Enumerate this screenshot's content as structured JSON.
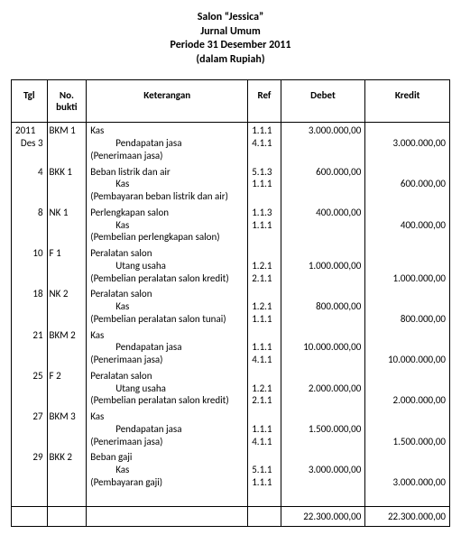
{
  "header": {
    "line1": "Salon “Jessica”",
    "line2": "Jurnal Umum",
    "line3": "Periode 31 Desember 2011",
    "line4": "(dalam Rupiah)"
  },
  "columns": {
    "tgl": "Tgl",
    "bukti": "No. bukti",
    "keterangan": "Keterangan",
    "ref": "Ref",
    "debet": "Debet",
    "kredit": "Kredit"
  },
  "year_label": "2011",
  "entries": [
    {
      "tgl": "Des  3",
      "bukti": "BKM 1",
      "lines": [
        {
          "ket": "Kas",
          "indent": 0,
          "ref": "1.1.1",
          "deb": "3.000.000,00",
          "kre": ""
        },
        {
          "ket": "Pendapatan jasa",
          "indent": 1,
          "ref": "4.1.1",
          "deb": "",
          "kre": "3.000.000,00"
        },
        {
          "ket": "(Penerimaan jasa)",
          "indent": 0,
          "ref": "",
          "deb": "",
          "kre": ""
        }
      ]
    },
    {
      "tgl": "4",
      "bukti": "BKK 1",
      "lines": [
        {
          "ket": "Beban listrik dan air",
          "indent": 0,
          "ref": "5.1.3",
          "deb": "600.000,00",
          "kre": ""
        },
        {
          "ket": "Kas",
          "indent": 1,
          "ref": "1.1.1",
          "deb": "",
          "kre": "600.000,00"
        },
        {
          "ket": "(Pembayaran beban listrik dan air)",
          "indent": 0,
          "ref": "",
          "deb": "",
          "kre": ""
        }
      ]
    },
    {
      "tgl": "8",
      "bukti": "NK 1",
      "lines": [
        {
          "ket": "Perlengkapan salon",
          "indent": 0,
          "ref": "1.1.3",
          "deb": "400.000,00",
          "kre": ""
        },
        {
          "ket": "Kas",
          "indent": 1,
          "ref": "1.1.1",
          "deb": "",
          "kre": "400.000,00"
        },
        {
          "ket": "(Pembelian perlengkapan salon)",
          "indent": 0,
          "ref": "",
          "deb": "",
          "kre": ""
        }
      ]
    },
    {
      "tgl": "10",
      "bukti": "F 1",
      "lines": [
        {
          "ket": "Peralatan salon",
          "indent": 0,
          "ref": "",
          "deb": "",
          "kre": ""
        },
        {
          "ket": "Utang usaha",
          "indent": 1,
          "ref": "1.2.1",
          "deb": "1.000.000,00",
          "kre": ""
        },
        {
          "ket": "(Pembelian peralatan salon kredit)",
          "indent": 0,
          "ref": "2.1.1",
          "deb": "",
          "kre": "1.000.000,00"
        }
      ]
    },
    {
      "tgl": "18",
      "bukti": "NK 2",
      "lines": [
        {
          "ket": "Peralatan salon",
          "indent": 0,
          "ref": "",
          "deb": "",
          "kre": ""
        },
        {
          "ket": "Kas",
          "indent": 1,
          "ref": "1.2.1",
          "deb": "800.000,00",
          "kre": ""
        },
        {
          "ket": "(Pembelian peralatan salon tunai)",
          "indent": 0,
          "ref": "1.1.1",
          "deb": "",
          "kre": "800.000,00"
        }
      ]
    },
    {
      "tgl": "21",
      "bukti": "BKM 2",
      "lines": [
        {
          "ket": "Kas",
          "indent": 0,
          "ref": "",
          "deb": "",
          "kre": ""
        },
        {
          "ket": "Pendapatan jasa",
          "indent": 1,
          "ref": "1.1.1",
          "deb": "10.000.000,00",
          "kre": ""
        },
        {
          "ket": "(Penerimaan jasa)",
          "indent": 0,
          "ref": "4.1.1",
          "deb": "",
          "kre": "10.000.000,00"
        }
      ]
    },
    {
      "tgl": "25",
      "bukti": "F 2",
      "lines": [
        {
          "ket": "Peralatan salon",
          "indent": 0,
          "ref": "",
          "deb": "",
          "kre": ""
        },
        {
          "ket": "Utang usaha",
          "indent": 1,
          "ref": "1.2.1",
          "deb": "2.000.000,00",
          "kre": ""
        },
        {
          "ket": "(Pembelian peralatan salon kredit)",
          "indent": 0,
          "ref": "2.1.1",
          "deb": "",
          "kre": "2.000.000,00"
        }
      ]
    },
    {
      "tgl": "27",
      "bukti": "BKM 3",
      "lines": [
        {
          "ket": "Kas",
          "indent": 0,
          "ref": "",
          "deb": "",
          "kre": ""
        },
        {
          "ket": "Pendapatan jasa",
          "indent": 1,
          "ref": "1.1.1",
          "deb": "1.500.000,00",
          "kre": ""
        },
        {
          "ket": "(Penerimaan jasa)",
          "indent": 0,
          "ref": "4.1.1",
          "deb": "",
          "kre": "1.500.000,00"
        }
      ]
    },
    {
      "tgl": "29",
      "bukti": "BKK 2",
      "lines": [
        {
          "ket": "Beban gaji",
          "indent": 0,
          "ref": "",
          "deb": "",
          "kre": ""
        },
        {
          "ket": "Kas",
          "indent": 1,
          "ref": "5.1.1",
          "deb": "3.000.000,00",
          "kre": ""
        },
        {
          "ket": "(Pembayaran gaji)",
          "indent": 0,
          "ref": "1.1.1",
          "deb": "",
          "kre": "3.000.000,00"
        }
      ]
    }
  ],
  "totals": {
    "debet": "22.300.000,00",
    "kredit": "22.300.000,00"
  }
}
